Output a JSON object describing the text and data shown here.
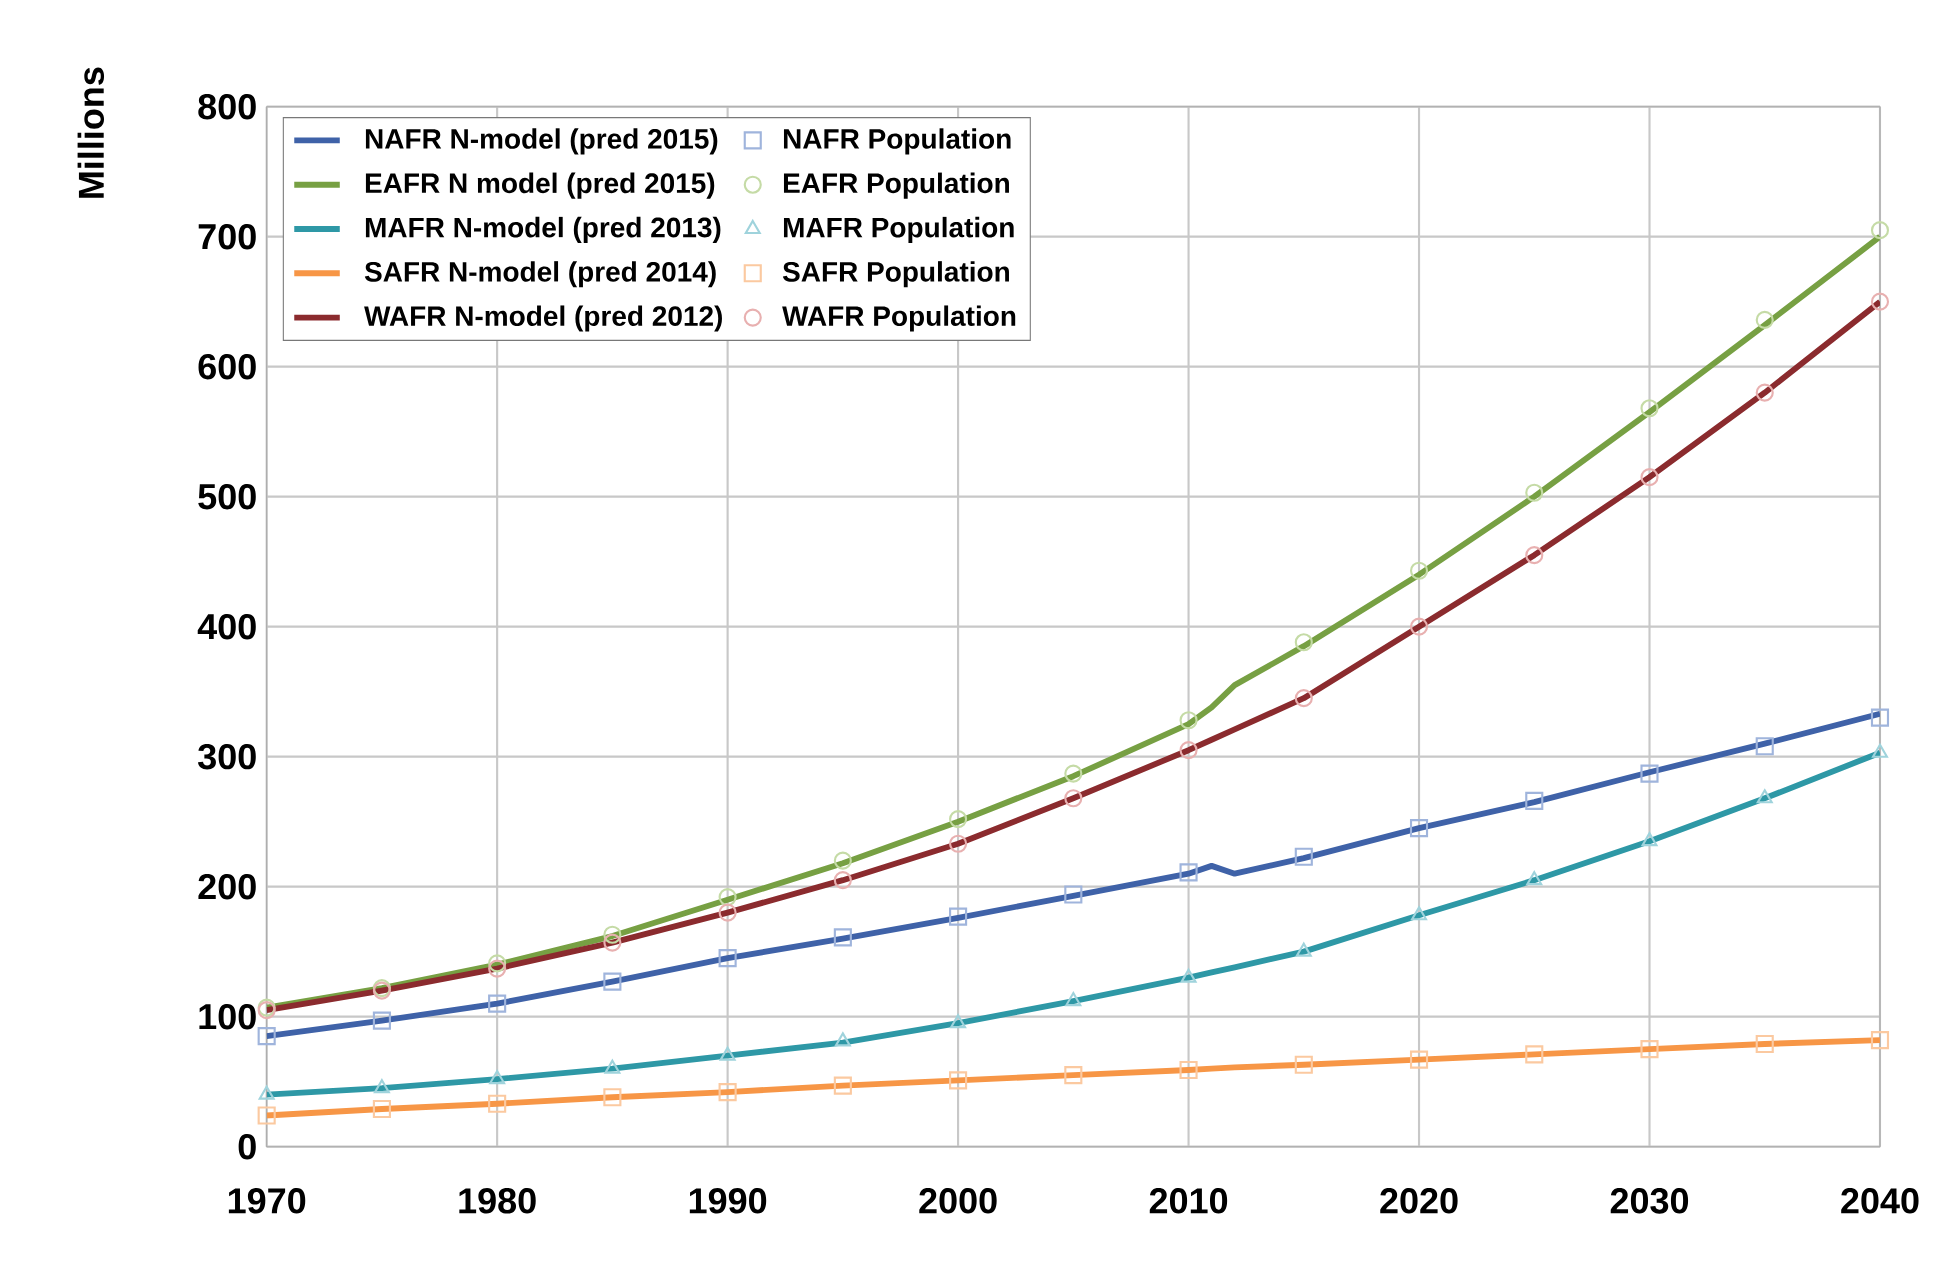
{
  "chart_data": {
    "type": "line",
    "ylabel": "Millions",
    "x": [
      1970,
      1975,
      1980,
      1985,
      1990,
      1995,
      2000,
      2005,
      2010,
      2011,
      2012,
      2015,
      2020,
      2025,
      2030,
      2035,
      2040
    ],
    "series": [
      {
        "name": "NAFR N-model (pred 2015)",
        "type": "line",
        "marker": "none",
        "color": "#3f62a8",
        "values": [
          85,
          97,
          110,
          127,
          145,
          160,
          176,
          193,
          210,
          216,
          210,
          222,
          245,
          265,
          288,
          310,
          333
        ]
      },
      {
        "name": "NAFR Population",
        "type": "scatter",
        "marker": "square",
        "color": "#9fb4dc",
        "x": [
          1970,
          1975,
          1980,
          1985,
          1990,
          1995,
          2000,
          2005,
          2010,
          2015,
          2020,
          2025,
          2030,
          2035,
          2040
        ],
        "values": [
          85,
          97,
          110,
          127,
          145,
          161,
          177,
          194,
          211,
          223,
          245,
          266,
          287,
          308,
          330
        ]
      },
      {
        "name": "EAFR N model (pred 2015)",
        "type": "line",
        "marker": "none",
        "color": "#77a043",
        "values": [
          107,
          122,
          140,
          162,
          190,
          218,
          250,
          285,
          325,
          338,
          355,
          385,
          440,
          500,
          565,
          632,
          700
        ]
      },
      {
        "name": "EAFR Population",
        "type": "scatter",
        "marker": "circle",
        "color": "#c5dba6",
        "x": [
          1970,
          1975,
          1980,
          1985,
          1990,
          1995,
          2000,
          2005,
          2010,
          2015,
          2020,
          2025,
          2030,
          2035,
          2040
        ],
        "values": [
          107,
          122,
          141,
          163,
          192,
          220,
          252,
          287,
          328,
          388,
          443,
          503,
          568,
          636,
          705
        ]
      },
      {
        "name": "MAFR N-model (pred 2013)",
        "type": "line",
        "marker": "none",
        "color": "#2e98a6",
        "values": [
          40,
          45,
          52,
          60,
          70,
          80,
          95,
          112,
          130,
          134,
          138,
          150,
          178,
          205,
          235,
          268,
          303
        ]
      },
      {
        "name": "MAFR Population",
        "type": "scatter",
        "marker": "triangle",
        "color": "#9fd3dc",
        "x": [
          1970,
          1975,
          1980,
          1985,
          1990,
          1995,
          2000,
          2005,
          2010,
          2015,
          2020,
          2025,
          2030,
          2035,
          2040
        ],
        "values": [
          40,
          45,
          52,
          60,
          70,
          81,
          95,
          112,
          130,
          150,
          178,
          205,
          235,
          268,
          303
        ]
      },
      {
        "name": "SAFR N-model (pred 2014)",
        "type": "line",
        "marker": "none",
        "color": "#f79646",
        "values": [
          24,
          29,
          33,
          38,
          42,
          47,
          51,
          55,
          59,
          60,
          61,
          63,
          67,
          71,
          75,
          79,
          82
        ]
      },
      {
        "name": "SAFR Population",
        "type": "scatter",
        "marker": "square",
        "color": "#fbc9a0",
        "x": [
          1970,
          1975,
          1980,
          1985,
          1990,
          1995,
          2000,
          2005,
          2010,
          2015,
          2020,
          2025,
          2030,
          2035,
          2040
        ],
        "values": [
          24,
          29,
          33,
          38,
          42,
          47,
          51,
          55,
          59,
          63,
          67,
          71,
          75,
          79,
          82
        ]
      },
      {
        "name": "WAFR N-model (pred 2012)",
        "type": "line",
        "marker": "none",
        "color": "#8b2b2e",
        "values": [
          105,
          120,
          137,
          157,
          180,
          205,
          233,
          268,
          305,
          313,
          321,
          345,
          400,
          455,
          515,
          580,
          650
        ]
      },
      {
        "name": "WAFR Population",
        "type": "scatter",
        "marker": "circle",
        "color": "#e8b0b0",
        "x": [
          1970,
          1975,
          1980,
          1985,
          1990,
          1995,
          2000,
          2005,
          2010,
          2015,
          2020,
          2025,
          2030,
          2035,
          2040
        ],
        "values": [
          105,
          120,
          137,
          157,
          180,
          205,
          233,
          268,
          305,
          345,
          400,
          455,
          515,
          580,
          650
        ]
      }
    ],
    "xlim": [
      1970,
      2040
    ],
    "xticks": [
      1970,
      1980,
      1990,
      2000,
      2010,
      2020,
      2030,
      2040
    ],
    "ylim": [
      0,
      800
    ],
    "yticks": [
      0,
      100,
      200,
      300,
      400,
      500,
      600,
      700,
      800
    ],
    "grid": true,
    "legend": "top left"
  }
}
